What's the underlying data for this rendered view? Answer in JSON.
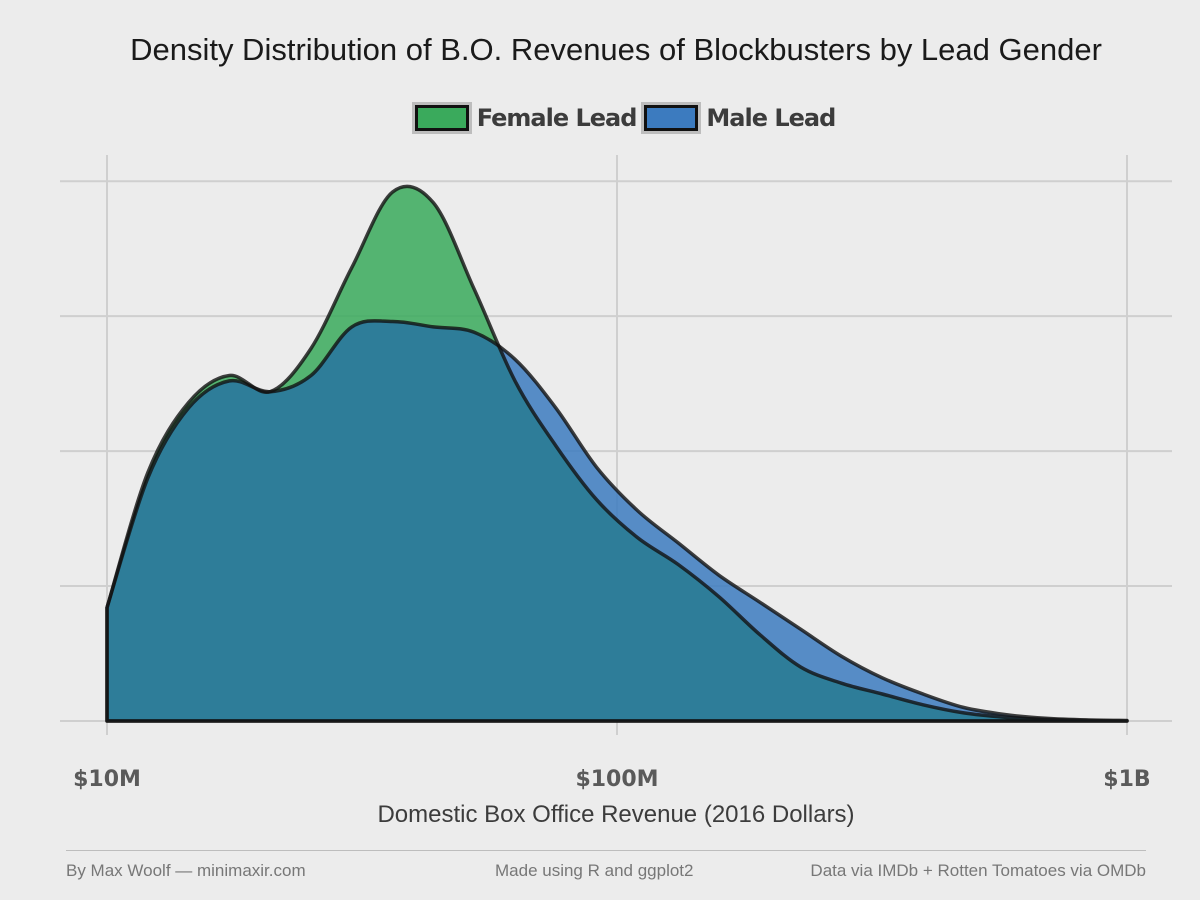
{
  "chart_data": {
    "type": "area",
    "title": "Density Distribution of B.O. Revenues of Blockbusters by Lead Gender",
    "xlabel": "Domestic Box Office Revenue (2016 Dollars)",
    "ylabel": "",
    "x_scale": "log10",
    "xlim": [
      10000000,
      1000000000
    ],
    "ylim": [
      0,
      1.03
    ],
    "grid": true,
    "legend_position": "top",
    "x_ticks": [
      {
        "value": 10000000,
        "label": "$10M"
      },
      {
        "value": 100000000,
        "label": "$100M"
      },
      {
        "value": 1000000000,
        "label": "$1B"
      }
    ],
    "y_gridlines": [
      0,
      0.25,
      0.5,
      0.75,
      1.0
    ],
    "x": [
      10000000,
      12023000,
      14454000,
      17378000,
      20893000,
      25119000,
      30200000,
      36308000,
      43652000,
      52481000,
      63096000,
      75858000,
      91201000,
      109648000,
      131826000,
      158489000,
      190546000,
      229087000,
      275423000,
      331131000,
      398107000,
      478630000,
      575440000,
      691831000,
      831764000,
      1000000000
    ],
    "series": [
      {
        "name": "Female Lead",
        "color": "#3aaa5c",
        "values": [
          0.21,
          0.46,
          0.59,
          0.64,
          0.61,
          0.69,
          0.84,
          0.98,
          0.96,
          0.8,
          0.63,
          0.51,
          0.41,
          0.34,
          0.29,
          0.23,
          0.16,
          0.1,
          0.07,
          0.05,
          0.03,
          0.015,
          0.007,
          0.003,
          0.001,
          0.0
        ]
      },
      {
        "name": "Male Lead",
        "color": "#3c7bbf",
        "values": [
          0.21,
          0.45,
          0.58,
          0.63,
          0.61,
          0.64,
          0.73,
          0.74,
          0.73,
          0.72,
          0.67,
          0.58,
          0.47,
          0.39,
          0.33,
          0.27,
          0.22,
          0.17,
          0.12,
          0.08,
          0.05,
          0.025,
          0.012,
          0.005,
          0.002,
          0.001
        ]
      }
    ],
    "overlap_color": "#2e7d99"
  },
  "footer": {
    "left": "By Max Woolf — minimaxir.com",
    "center": "Made using R and ggplot2",
    "right": "Data via IMDb + Rotten Tomatoes via OMDb"
  }
}
